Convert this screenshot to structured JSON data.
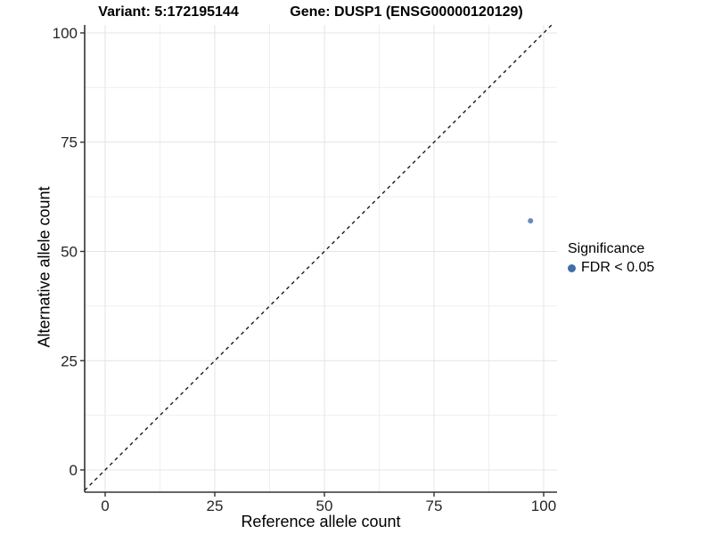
{
  "chart_data": {
    "type": "scatter",
    "variant_title": "Variant: 5:172195144",
    "gene_title": "Gene: DUSP1 (ENSG00000120129)",
    "xlabel": "Reference allele count",
    "ylabel": "Alternative allele count",
    "xlim": [
      -4.67,
      103.05
    ],
    "ylim": [
      -5.09,
      101.83
    ],
    "x_ticks": [
      0,
      25,
      50,
      75,
      100
    ],
    "y_ticks": [
      0,
      25,
      50,
      75,
      100
    ],
    "x_minor_ticks": [
      12.5,
      37.5,
      62.5,
      87.5
    ],
    "y_minor_ticks": [
      12.5,
      37.5,
      62.5,
      87.5
    ],
    "grid": true,
    "points": [
      {
        "x": 97,
        "y": 57,
        "series": "FDR < 0.05"
      }
    ],
    "reference_line": {
      "type": "abline",
      "slope": 1,
      "intercept": 0,
      "style": "dashed"
    },
    "legend": {
      "title": "Significance",
      "position": "right",
      "items": [
        {
          "label": "FDR < 0.05",
          "color": "#3f6fa9"
        }
      ]
    },
    "colors": {
      "point": "#3f6fa9",
      "point_opacity": 0.8,
      "grid_major": "#e4e4e4",
      "grid_minor": "#efefef",
      "axis_line": "#333333",
      "tick_label": "#262626",
      "dashed_line": "#1a1a1a",
      "background": "#ffffff"
    }
  }
}
